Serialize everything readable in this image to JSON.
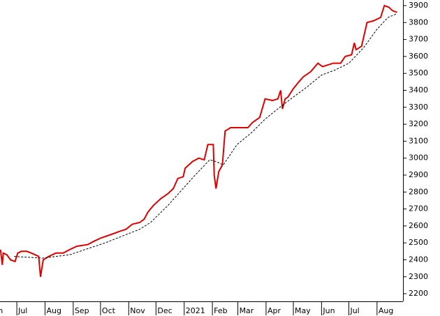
{
  "chart_data": {
    "type": "line",
    "xlim": [
      11.5,
      453
    ],
    "xticks": [
      {
        "value": 0,
        "label": "Jun"
      },
      {
        "value": 30,
        "label": "Jul"
      },
      {
        "value": 61,
        "label": "Aug"
      },
      {
        "value": 92,
        "label": "Sep"
      },
      {
        "value": 122,
        "label": "Oct"
      },
      {
        "value": 153,
        "label": "Nov"
      },
      {
        "value": 183,
        "label": "Dec"
      },
      {
        "value": 214,
        "label": "2021"
      },
      {
        "value": 245,
        "label": "Feb"
      },
      {
        "value": 273,
        "label": "Mar"
      },
      {
        "value": 304,
        "label": "Apr"
      },
      {
        "value": 334,
        "label": "May"
      },
      {
        "value": 365,
        "label": "Jun"
      },
      {
        "value": 395,
        "label": "Jul"
      },
      {
        "value": 426,
        "label": "Aug"
      }
    ],
    "ylim": [
      2155,
      3933
    ],
    "yticks": [
      2200,
      2300,
      2400,
      2500,
      2600,
      2700,
      2800,
      2900,
      3000,
      3100,
      3200,
      3300,
      3400,
      3500,
      3600,
      3700,
      3800,
      3900
    ],
    "series": [
      {
        "color": "#dd0000",
        "x": [
          12,
          14,
          15,
          19,
          23,
          28,
          31,
          35,
          41,
          46,
          54,
          56,
          59,
          65,
          73,
          81,
          88,
          96,
          108,
          115,
          123,
          134,
          144,
          150,
          157,
          165,
          170,
          174,
          180,
          188,
          196,
          202,
          207,
          213,
          215,
          223,
          230,
          236,
          240,
          246,
          247,
          249,
          252,
          256,
          259,
          265,
          276,
          284,
          289,
          297,
          303,
          311,
          317,
          320,
          322,
          325,
          328,
          334,
          340,
          345,
          353,
          361,
          366,
          372,
          378,
          386,
          391,
          398,
          401,
          403,
          409,
          412,
          415,
          422,
          430,
          434,
          439,
          443,
          448
        ],
        "values": [
          2460,
          2370,
          2440,
          2430,
          2400,
          2390,
          2440,
          2450,
          2450,
          2440,
          2420,
          2300,
          2400,
          2420,
          2440,
          2440,
          2460,
          2480,
          2490,
          2510,
          2530,
          2550,
          2570,
          2580,
          2610,
          2620,
          2640,
          2680,
          2720,
          2760,
          2790,
          2820,
          2880,
          2890,
          2940,
          2980,
          3000,
          2990,
          3080,
          3080,
          2900,
          2820,
          2920,
          2960,
          3160,
          3180,
          3180,
          3180,
          3210,
          3240,
          3350,
          3340,
          3350,
          3400,
          3290,
          3350,
          3360,
          3410,
          3450,
          3480,
          3510,
          3560,
          3540,
          3550,
          3560,
          3560,
          3600,
          3610,
          3680,
          3640,
          3660,
          3730,
          3800,
          3810,
          3830,
          3900,
          3890,
          3870,
          3860
        ]
      },
      {
        "color": "#000000",
        "dashed": true,
        "x": [
          27,
          58,
          88,
          127,
          165,
          177,
          196,
          211,
          226,
          242,
          249,
          257,
          272,
          288,
          303,
          319,
          334,
          349,
          365,
          380,
          395,
          411,
          426,
          438,
          447
        ],
        "values": [
          2420,
          2410,
          2430,
          2500,
          2580,
          2620,
          2720,
          2810,
          2900,
          2990,
          2980,
          2960,
          3080,
          3150,
          3230,
          3300,
          3360,
          3420,
          3490,
          3520,
          3560,
          3650,
          3760,
          3830,
          3850
        ]
      }
    ]
  }
}
